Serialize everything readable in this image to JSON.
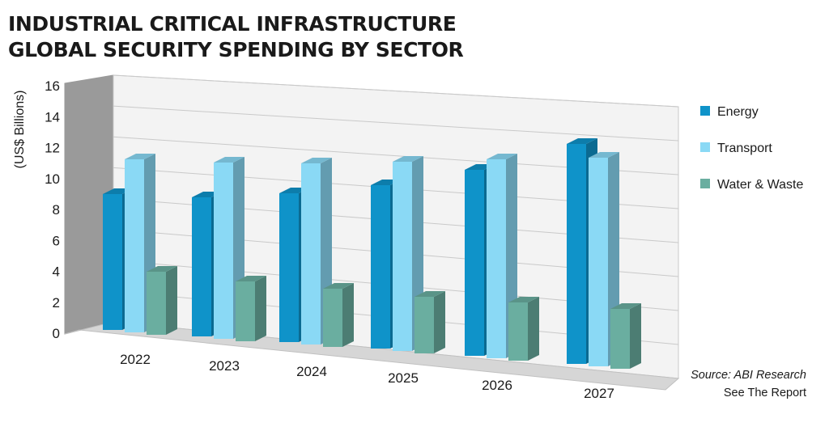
{
  "title_lines": [
    "INDUSTRIAL CRITICAL INFRASTRUCTURE",
    "GLOBAL SECURITY SPENDING BY SECTOR"
  ],
  "source": "Source: ABI Research",
  "see_report": "See The Report",
  "chart_data": {
    "type": "bar",
    "title": "INDUSTRIAL CRITICAL INFRASTRUCTURE GLOBAL SECURITY SPENDING BY SECTOR",
    "ylabel": "(US$ Billions)",
    "xlabel": "",
    "ylim": [
      0,
      16
    ],
    "yticks": [
      "0",
      "2",
      "4",
      "6",
      "8",
      "10",
      "12",
      "14",
      "16"
    ],
    "categories": [
      "2022",
      "2023",
      "2024",
      "2025",
      "2026",
      "2027"
    ],
    "series": [
      {
        "name": "Energy",
        "values": [
          8.4,
          8.6,
          9.2,
          10.1,
          11.5,
          13.6
        ],
        "color": "#0f93c9"
      },
      {
        "name": "Transport",
        "values": [
          10.7,
          10.9,
          11.2,
          11.7,
          12.3,
          12.9
        ],
        "color": "#8ad9f5"
      },
      {
        "name": "Water & Waste",
        "values": [
          3.9,
          3.7,
          3.6,
          3.5,
          3.6,
          3.7
        ],
        "color": "#6aaea0"
      }
    ],
    "grid": true,
    "legend_position": "right",
    "style": "3d"
  }
}
